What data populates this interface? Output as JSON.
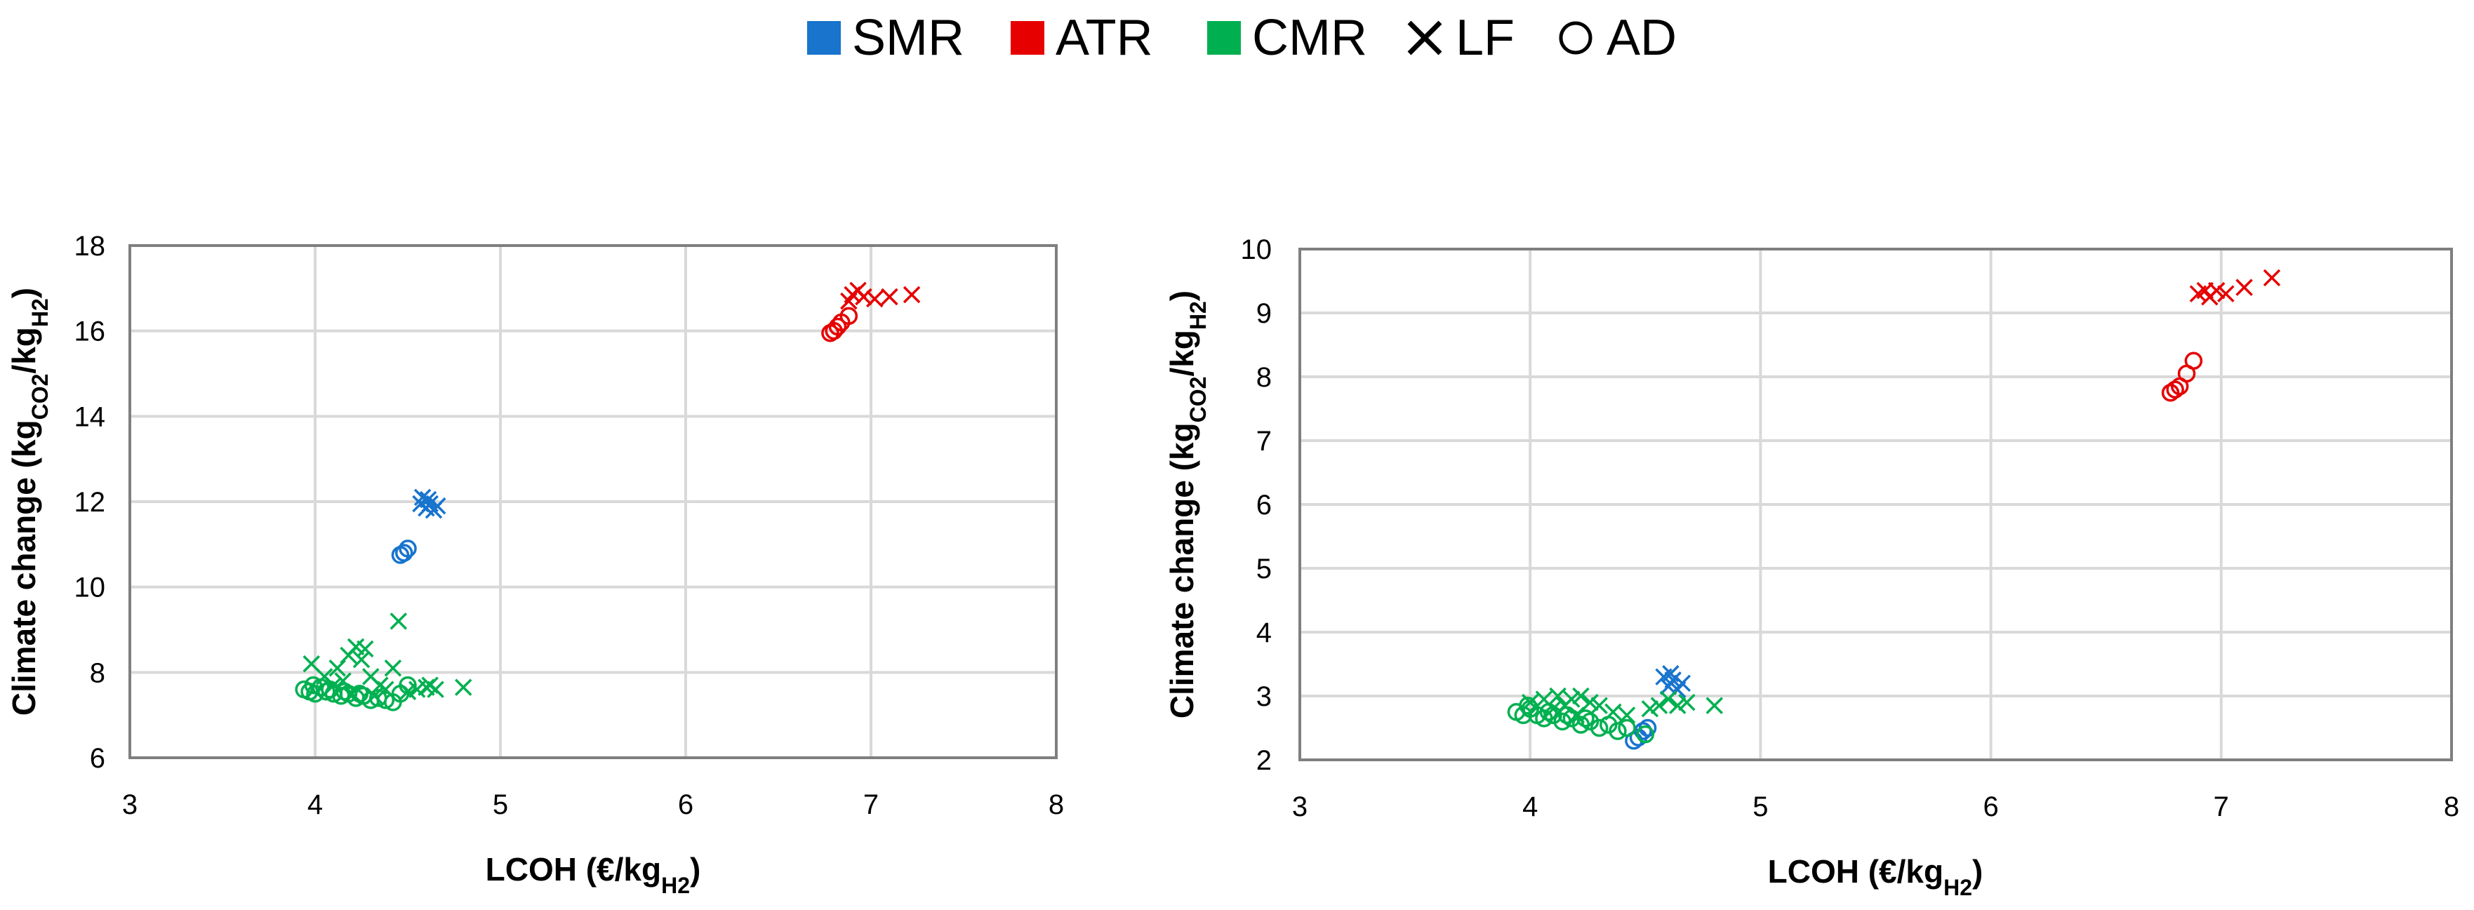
{
  "colors": {
    "SMR": "#1874CD",
    "ATR": "#E60000",
    "CMR": "#00B050",
    "grid": "#D9D9D9",
    "frame": "#7F7F7F"
  },
  "legend": {
    "items": [
      {
        "label": "SMR",
        "kind": "swatch",
        "color": "#1874CD"
      },
      {
        "label": "ATR",
        "kind": "swatch",
        "color": "#E60000"
      },
      {
        "label": "CMR",
        "kind": "swatch",
        "color": "#00B050"
      },
      {
        "label": "LF",
        "kind": "cross-icon"
      },
      {
        "label": "AD",
        "kind": "circle-icon"
      }
    ]
  },
  "chart_data": [
    {
      "type": "scatter",
      "x_axis": {
        "title": "LCOH (€/kg",
        "title_sub": "H2",
        "title_end": ")",
        "min": 3,
        "max": 8,
        "ticks": [
          3,
          4,
          5,
          6,
          7,
          8
        ]
      },
      "y_axis": {
        "title": "Climate change (kg",
        "title_sub1": "CO2",
        "title_mid": "/kg",
        "title_sub2": "H2",
        "title_end": ")",
        "min": 6,
        "max": 18,
        "ticks": [
          6,
          8,
          10,
          12,
          14,
          16,
          18
        ]
      },
      "grid": true,
      "series": [
        {
          "name": "SMR",
          "marker": "cross",
          "points": [
            [
              4.58,
              12.1
            ],
            [
              4.6,
              11.85
            ],
            [
              4.62,
              11.95
            ],
            [
              4.64,
              11.8
            ],
            [
              4.66,
              11.9
            ],
            [
              4.57,
              11.95
            ],
            [
              4.61,
              12.05
            ]
          ]
        },
        {
          "name": "SMR",
          "marker": "circle",
          "points": [
            [
              4.46,
              10.75
            ],
            [
              4.48,
              10.8
            ],
            [
              4.5,
              10.9
            ]
          ]
        },
        {
          "name": "ATR",
          "marker": "cross",
          "points": [
            [
              6.88,
              16.7
            ],
            [
              6.9,
              16.85
            ],
            [
              6.93,
              16.95
            ],
            [
              6.96,
              16.8
            ],
            [
              7.02,
              16.75
            ],
            [
              7.1,
              16.8
            ],
            [
              7.22,
              16.85
            ]
          ]
        },
        {
          "name": "ATR",
          "marker": "circle",
          "points": [
            [
              6.78,
              15.95
            ],
            [
              6.8,
              16.0
            ],
            [
              6.82,
              16.1
            ],
            [
              6.84,
              16.2
            ],
            [
              6.88,
              16.35
            ]
          ]
        },
        {
          "name": "CMR",
          "marker": "cross",
          "points": [
            [
              3.98,
              8.2
            ],
            [
              4.05,
              7.9
            ],
            [
              4.12,
              8.1
            ],
            [
              4.18,
              8.4
            ],
            [
              4.22,
              8.6
            ],
            [
              4.25,
              8.3
            ],
            [
              4.27,
              8.55
            ],
            [
              4.3,
              7.9
            ],
            [
              4.35,
              7.7
            ],
            [
              4.38,
              7.6
            ],
            [
              4.42,
              8.1
            ],
            [
              4.45,
              9.2
            ],
            [
              4.5,
              7.55
            ],
            [
              4.55,
              7.6
            ],
            [
              4.6,
              7.65
            ],
            [
              4.62,
              7.7
            ],
            [
              4.65,
              7.6
            ],
            [
              4.8,
              7.65
            ],
            [
              4.1,
              7.7
            ],
            [
              4.15,
              7.8
            ],
            [
              4.2,
              7.5
            ],
            [
              4.32,
              7.45
            ]
          ]
        },
        {
          "name": "CMR",
          "marker": "circle",
          "points": [
            [
              3.94,
              7.6
            ],
            [
              3.97,
              7.55
            ],
            [
              4.0,
              7.5
            ],
            [
              4.03,
              7.65
            ],
            [
              4.06,
              7.55
            ],
            [
              4.1,
              7.5
            ],
            [
              4.14,
              7.45
            ],
            [
              4.18,
              7.5
            ],
            [
              4.22,
              7.4
            ],
            [
              4.26,
              7.45
            ],
            [
              4.3,
              7.35
            ],
            [
              4.34,
              7.4
            ],
            [
              4.38,
              7.35
            ],
            [
              4.42,
              7.3
            ],
            [
              4.46,
              7.5
            ],
            [
              4.5,
              7.7
            ],
            [
              3.99,
              7.7
            ],
            [
              4.08,
              7.6
            ],
            [
              4.16,
              7.55
            ],
            [
              4.24,
              7.5
            ]
          ]
        }
      ]
    },
    {
      "type": "scatter",
      "x_axis": {
        "title": "LCOH (€/kg",
        "title_sub": "H2",
        "title_end": ")",
        "min": 3,
        "max": 8,
        "ticks": [
          3,
          4,
          5,
          6,
          7,
          8
        ]
      },
      "y_axis": {
        "title": "Climate change (kg",
        "title_sub1": "CO2",
        "title_mid": "/kg",
        "title_sub2": "H2",
        "title_end": ")",
        "min": 2,
        "max": 10,
        "ticks": [
          2,
          3,
          4,
          5,
          6,
          7,
          8,
          9,
          10
        ]
      },
      "grid": true,
      "series": [
        {
          "name": "SMR",
          "marker": "cross",
          "points": [
            [
              4.58,
              3.3
            ],
            [
              4.6,
              3.15
            ],
            [
              4.62,
              3.25
            ],
            [
              4.64,
              3.1
            ],
            [
              4.66,
              3.2
            ],
            [
              4.61,
              3.35
            ]
          ]
        },
        {
          "name": "SMR",
          "marker": "circle",
          "points": [
            [
              4.45,
              2.3
            ],
            [
              4.47,
              2.35
            ],
            [
              4.49,
              2.45
            ],
            [
              4.51,
              2.5
            ]
          ]
        },
        {
          "name": "ATR",
          "marker": "cross",
          "points": [
            [
              6.9,
              9.3
            ],
            [
              6.93,
              9.35
            ],
            [
              6.95,
              9.25
            ],
            [
              6.98,
              9.35
            ],
            [
              7.02,
              9.3
            ],
            [
              7.1,
              9.4
            ],
            [
              7.22,
              9.55
            ]
          ]
        },
        {
          "name": "ATR",
          "marker": "circle",
          "points": [
            [
              6.78,
              7.75
            ],
            [
              6.8,
              7.8
            ],
            [
              6.82,
              7.85
            ],
            [
              6.85,
              8.05
            ],
            [
              6.88,
              8.25
            ]
          ]
        },
        {
          "name": "CMR",
          "marker": "cross",
          "points": [
            [
              4.0,
              2.9
            ],
            [
              4.06,
              2.95
            ],
            [
              4.12,
              3.0
            ],
            [
              4.18,
              2.95
            ],
            [
              4.22,
              3.0
            ],
            [
              4.26,
              2.9
            ],
            [
              4.3,
              2.85
            ],
            [
              4.36,
              2.75
            ],
            [
              4.42,
              2.7
            ],
            [
              4.52,
              2.8
            ],
            [
              4.56,
              2.85
            ],
            [
              4.6,
              2.95
            ],
            [
              4.64,
              2.85
            ],
            [
              4.68,
              2.9
            ],
            [
              4.8,
              2.85
            ],
            [
              4.1,
              2.8
            ],
            [
              4.15,
              2.85
            ],
            [
              4.2,
              2.7
            ]
          ]
        },
        {
          "name": "CMR",
          "marker": "circle",
          "points": [
            [
              3.94,
              2.75
            ],
            [
              3.97,
              2.7
            ],
            [
              4.0,
              2.8
            ],
            [
              4.03,
              2.7
            ],
            [
              4.06,
              2.65
            ],
            [
              4.1,
              2.7
            ],
            [
              4.14,
              2.6
            ],
            [
              4.18,
              2.65
            ],
            [
              4.22,
              2.55
            ],
            [
              4.26,
              2.6
            ],
            [
              4.3,
              2.5
            ],
            [
              4.34,
              2.55
            ],
            [
              4.38,
              2.45
            ],
            [
              4.42,
              2.5
            ],
            [
              4.5,
              2.4
            ],
            [
              3.99,
              2.85
            ],
            [
              4.08,
              2.75
            ],
            [
              4.16,
              2.7
            ],
            [
              4.24,
              2.65
            ]
          ]
        }
      ]
    }
  ]
}
